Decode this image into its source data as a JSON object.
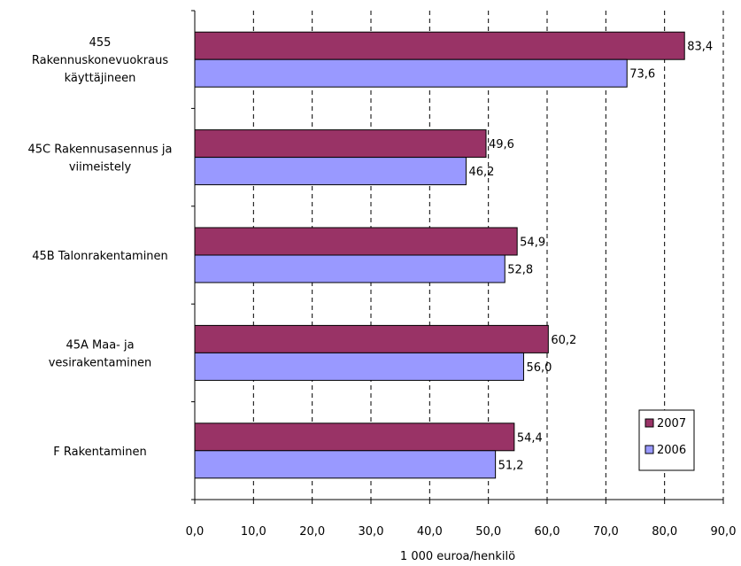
{
  "chart_data": {
    "type": "bar",
    "orientation": "horizontal",
    "categories": [
      [
        "455",
        "Rakennuskonevuokraus",
        "käyttäjineen"
      ],
      [
        "45C Rakennusasennus ja",
        "viimeistely"
      ],
      [
        "45B Talonrakentaminen"
      ],
      [
        "45A Maa- ja",
        "vesirakentaminen"
      ],
      [
        "F Rakentaminen"
      ]
    ],
    "series": [
      {
        "name": "2007",
        "color": "#993366",
        "values": [
          83.4,
          49.6,
          54.9,
          60.2,
          54.4
        ],
        "labels": [
          "83,4",
          "49,6",
          "54,9",
          "60,2",
          "54,4"
        ]
      },
      {
        "name": "2006",
        "color": "#9999ff",
        "values": [
          73.6,
          46.2,
          52.8,
          56.0,
          51.2
        ],
        "labels": [
          "73,6",
          "46,2",
          "52,8",
          "56,0",
          "51,2"
        ]
      }
    ],
    "xlabel": "1 000 euroa/henkilö",
    "xlim": [
      0,
      90
    ],
    "xticks": [
      0,
      10,
      20,
      30,
      40,
      50,
      60,
      70,
      80,
      90
    ],
    "xtick_labels": [
      "0,0",
      "10,0",
      "20,0",
      "30,0",
      "40,0",
      "50,0",
      "60,0",
      "70,0",
      "80,0",
      "90,0"
    ],
    "grid": "vertical dashed",
    "legend": {
      "placement": "bottom-right",
      "entries": [
        "2007",
        "2006"
      ]
    }
  }
}
